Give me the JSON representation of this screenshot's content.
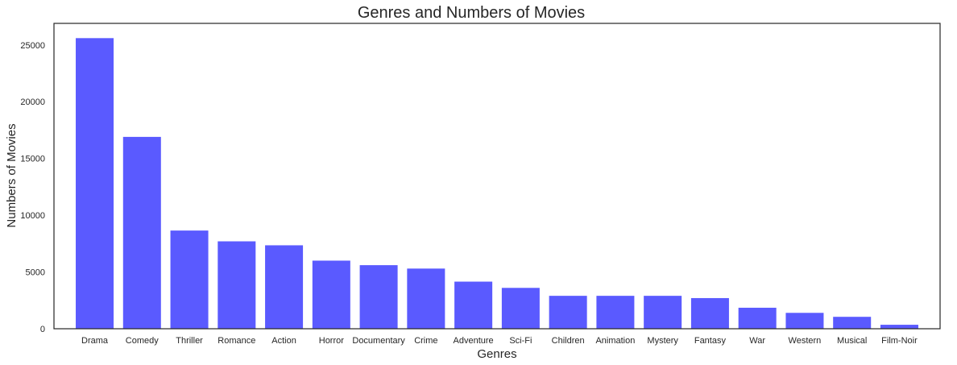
{
  "chart_data": {
    "type": "bar",
    "title": "Genres and Numbers of Movies",
    "xlabel": "Genres",
    "ylabel": "Numbers of Movies",
    "categories": [
      "Drama",
      "Comedy",
      "Thriller",
      "Romance",
      "Action",
      "Horror",
      "Documentary",
      "Crime",
      "Adventure",
      "Sci-Fi",
      "Children",
      "Animation",
      "Mystery",
      "Fantasy",
      "War",
      "Western",
      "Musical",
      "Film-Noir"
    ],
    "values": [
      25600,
      16900,
      8650,
      7700,
      7350,
      6000,
      5600,
      5300,
      4150,
      3600,
      2900,
      2900,
      2900,
      2700,
      1850,
      1400,
      1050,
      350
    ],
    "ylim": [
      0,
      26900
    ],
    "yticks": [
      0,
      5000,
      10000,
      15000,
      20000,
      25000
    ],
    "bar_color": "#5a5aff",
    "grid": false,
    "legend": "none"
  }
}
